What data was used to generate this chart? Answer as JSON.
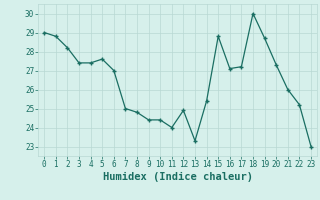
{
  "x": [
    0,
    1,
    2,
    3,
    4,
    5,
    6,
    7,
    8,
    9,
    10,
    11,
    12,
    13,
    14,
    15,
    16,
    17,
    18,
    19,
    20,
    21,
    22,
    23
  ],
  "y": [
    29.0,
    28.8,
    28.2,
    27.4,
    27.4,
    27.6,
    27.0,
    25.0,
    24.8,
    24.4,
    24.4,
    24.0,
    24.9,
    23.3,
    25.4,
    28.8,
    27.1,
    27.2,
    30.0,
    28.7,
    27.3,
    26.0,
    25.2,
    23.0
  ],
  "xlabel": "Humidex (Indice chaleur)",
  "line_color": "#1a6e62",
  "marker": "+",
  "bg_color": "#d6f0eb",
  "grid_color": "#b8d8d4",
  "xlim": [
    -0.5,
    23.5
  ],
  "ylim": [
    22.5,
    30.5
  ],
  "yticks": [
    23,
    24,
    25,
    26,
    27,
    28,
    29,
    30
  ],
  "xticks": [
    0,
    1,
    2,
    3,
    4,
    5,
    6,
    7,
    8,
    9,
    10,
    11,
    12,
    13,
    14,
    15,
    16,
    17,
    18,
    19,
    20,
    21,
    22,
    23
  ],
  "xtick_labels": [
    "0",
    "1",
    "2",
    "3",
    "4",
    "5",
    "6",
    "7",
    "8",
    "9",
    "10",
    "11",
    "12",
    "13",
    "14",
    "15",
    "16",
    "17",
    "18",
    "19",
    "20",
    "21",
    "22",
    "23"
  ],
  "tick_fontsize": 5.5,
  "xlabel_fontsize": 7.5,
  "tick_color": "#1a6e62"
}
